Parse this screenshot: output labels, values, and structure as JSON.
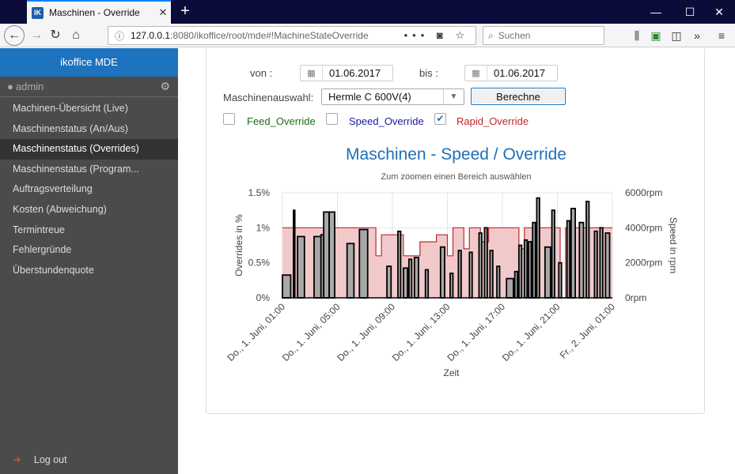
{
  "browser": {
    "tab_title": "Maschinen - Override",
    "tab_favicon": "IK",
    "url_host": "127.0.0.1",
    "url_path": ":8080/ikoffice/root/mde#!MachineStateOverride",
    "search_placeholder": "Suchen"
  },
  "sidebar": {
    "header": "ikoffice MDE",
    "user": "admin",
    "items": [
      {
        "label": "Machinen-Übersicht (Live)"
      },
      {
        "label": "Maschinenstatus (An/Aus)"
      },
      {
        "label": "Maschinenstatus (Overrides)"
      },
      {
        "label": "Maschinenstatus (Program..."
      },
      {
        "label": "Auftragsverteilung"
      },
      {
        "label": "Kosten (Abweichung)"
      },
      {
        "label": "Termintreue"
      },
      {
        "label": "Fehlergründe"
      },
      {
        "label": "Überstundenquote"
      }
    ],
    "active_index": 2,
    "logout": "Log out"
  },
  "form": {
    "von_label": "von :",
    "von_value": "01.06.2017",
    "bis_label": "bis :",
    "bis_value": "01.06.2017",
    "machine_label": "Maschinenauswahl:",
    "machine_value": "Hermle C 600V(4)",
    "calc_button": "Berechne",
    "checkboxes": [
      {
        "label": "Feed_Override",
        "checked": false,
        "color": "#1a6e1a"
      },
      {
        "label": "Speed_Override",
        "checked": false,
        "color": "#1a1aa0"
      },
      {
        "label": "Rapid_Override",
        "checked": true,
        "color": "#c0282d"
      }
    ]
  },
  "chart_data": {
    "type": "area",
    "title": "Maschinen - Speed / Override",
    "subtitle": "Zum zoomen einen Bereich auswählen",
    "xlabel": "Zeit",
    "ylabel_left": "Overrides in %",
    "ylabel_right": "Speed in rpm",
    "x_ticks": [
      "Do., 1. Juni, 01:00",
      "Do., 1. Juni, 05:00",
      "Do., 1. Juni, 09:00",
      "Do., 1. Juni, 13:00",
      "Do., 1. Juni, 17:00",
      "Do., 1. Juni, 21:00",
      "Fr., 2. Juni, 01:00"
    ],
    "y_left_ticks": [
      "0%",
      "0.5%",
      "1%",
      "1.5%"
    ],
    "y_right_ticks": [
      "0rpm",
      "2000rpm",
      "4000rpm",
      "6000rpm"
    ],
    "xlim_hours": [
      0,
      24
    ],
    "ylim_left": [
      0,
      1.5
    ],
    "ylim_right": [
      0,
      6000
    ],
    "grid": true,
    "colors": {
      "rapid_fill": "#f2c9ca",
      "rapid_line": "#c0282d",
      "speed_fill": "#a8a8a8",
      "speed_line": "#000000"
    },
    "series": [
      {
        "name": "Rapid_Override",
        "axis": "left",
        "step": [
          [
            0,
            1.0
          ],
          [
            6.8,
            1.0
          ],
          [
            6.8,
            0.6
          ],
          [
            7.2,
            0.6
          ],
          [
            7.2,
            0.9
          ],
          [
            8.8,
            0.9
          ],
          [
            8.8,
            0.6
          ],
          [
            10.0,
            0.6
          ],
          [
            10.0,
            0.8
          ],
          [
            11.2,
            0.8
          ],
          [
            11.2,
            0.9
          ],
          [
            12.0,
            0.9
          ],
          [
            12.0,
            0.6
          ],
          [
            12.4,
            0.6
          ],
          [
            12.4,
            1.0
          ],
          [
            13.2,
            1.0
          ],
          [
            13.2,
            0.7
          ],
          [
            13.6,
            0.7
          ],
          [
            13.6,
            1.0
          ],
          [
            14.4,
            1.0
          ],
          [
            14.4,
            0.8
          ],
          [
            15.0,
            0.8
          ],
          [
            15.0,
            1.0
          ],
          [
            17.2,
            1.0
          ],
          [
            17.2,
            0.7
          ],
          [
            17.6,
            0.7
          ],
          [
            17.6,
            1.0
          ],
          [
            20.2,
            1.0
          ],
          [
            20.2,
            0.0
          ],
          [
            20.6,
            0.0
          ],
          [
            20.6,
            1.0
          ],
          [
            24.0,
            1.0
          ]
        ]
      },
      {
        "name": "Speed",
        "axis": "right",
        "bars": [
          [
            0.0,
            0.6,
            1300
          ],
          [
            0.8,
            0.9,
            5000
          ],
          [
            1.1,
            1.6,
            3500
          ],
          [
            2.3,
            2.9,
            3500
          ],
          [
            2.8,
            3.0,
            3600
          ],
          [
            3.0,
            3.4,
            4900
          ],
          [
            3.4,
            3.8,
            4900
          ],
          [
            4.7,
            5.2,
            3100
          ],
          [
            5.6,
            6.2,
            3900
          ],
          [
            7.6,
            7.9,
            1800
          ],
          [
            8.4,
            8.6,
            3800
          ],
          [
            8.8,
            9.1,
            1700
          ],
          [
            9.2,
            9.4,
            2200
          ],
          [
            9.6,
            9.9,
            2300
          ],
          [
            10.4,
            10.6,
            1600
          ],
          [
            11.5,
            11.8,
            2900
          ],
          [
            12.2,
            12.4,
            1400
          ],
          [
            12.8,
            13.0,
            2700
          ],
          [
            13.6,
            13.8,
            2600
          ],
          [
            14.3,
            14.5,
            3700
          ],
          [
            14.7,
            14.9,
            4000
          ],
          [
            15.1,
            15.3,
            2700
          ],
          [
            15.6,
            15.8,
            1800
          ],
          [
            16.3,
            16.8,
            1100
          ],
          [
            16.9,
            17.1,
            1500
          ],
          [
            17.2,
            17.4,
            3000
          ],
          [
            17.6,
            17.8,
            3300
          ],
          [
            17.9,
            18.1,
            3200
          ],
          [
            18.2,
            18.4,
            4300
          ],
          [
            18.5,
            18.7,
            5700
          ],
          [
            19.1,
            19.5,
            2900
          ],
          [
            19.6,
            19.8,
            5000
          ],
          [
            20.1,
            20.3,
            2000
          ],
          [
            20.7,
            20.9,
            4400
          ],
          [
            21.0,
            21.3,
            5100
          ],
          [
            21.6,
            21.9,
            4300
          ],
          [
            22.1,
            22.3,
            5500
          ],
          [
            22.7,
            22.9,
            3800
          ],
          [
            23.1,
            23.3,
            4000
          ],
          [
            23.5,
            23.8,
            3700
          ]
        ]
      }
    ]
  }
}
